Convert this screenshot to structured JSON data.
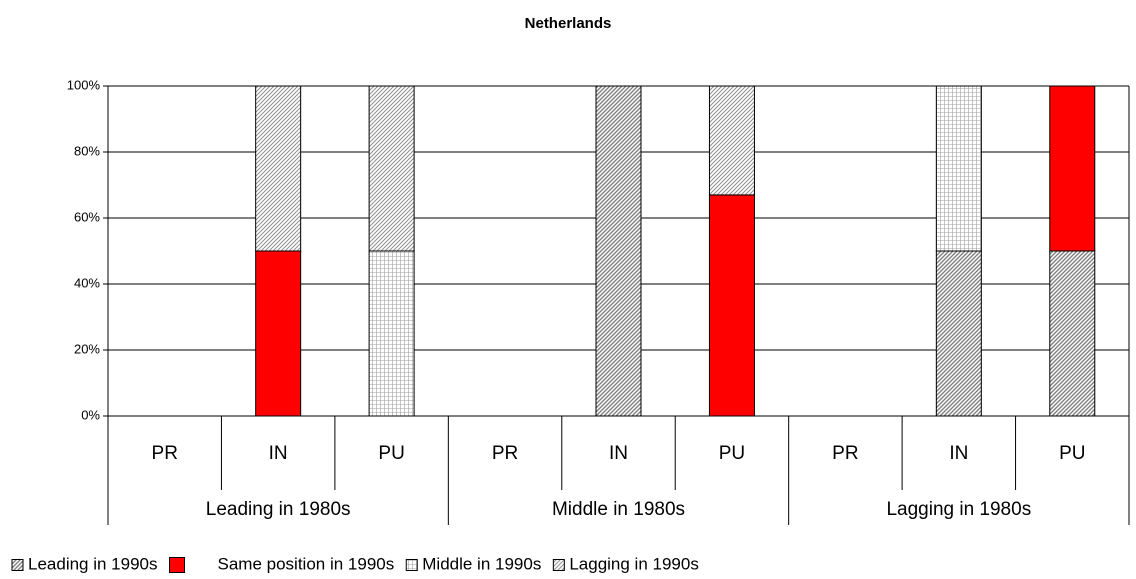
{
  "chart_data": {
    "type": "stacked_bar",
    "title": "Netherlands",
    "categories": [
      "PR",
      "IN",
      "PU",
      "PR",
      "IN",
      "PU",
      "PR",
      "IN",
      "PU"
    ],
    "groups": [
      "Leading in 1980s",
      "Middle in 1980s",
      "Lagging in 1980s"
    ],
    "series": [
      {
        "name": "Leading in 1990s",
        "color": "#808080",
        "pattern": "dense-diagonal",
        "values": [
          0,
          0,
          0,
          0,
          100,
          0,
          0,
          50,
          50
        ]
      },
      {
        "name": "Same position in 1990s",
        "color": "#ff0000",
        "pattern": "solid",
        "values": [
          0,
          50,
          0,
          0,
          0,
          67,
          0,
          0,
          50
        ]
      },
      {
        "name": "Middle in 1990s",
        "color": "#a0a0a0",
        "pattern": "grid",
        "values": [
          0,
          0,
          50,
          0,
          0,
          0,
          0,
          50,
          0
        ]
      },
      {
        "name": "Lagging in 1990s",
        "color": "#909090",
        "pattern": "diagonal",
        "values": [
          0,
          50,
          50,
          0,
          0,
          33,
          0,
          0,
          0
        ]
      }
    ],
    "ylim": [
      0,
      100
    ],
    "yticks": [
      {
        "value": 0,
        "label": "0%"
      },
      {
        "value": 20,
        "label": "20%"
      },
      {
        "value": 40,
        "label": "40%"
      },
      {
        "value": 60,
        "label": "60%"
      },
      {
        "value": 80,
        "label": "80%"
      },
      {
        "value": 100,
        "label": "100%"
      }
    ],
    "grid": true
  }
}
